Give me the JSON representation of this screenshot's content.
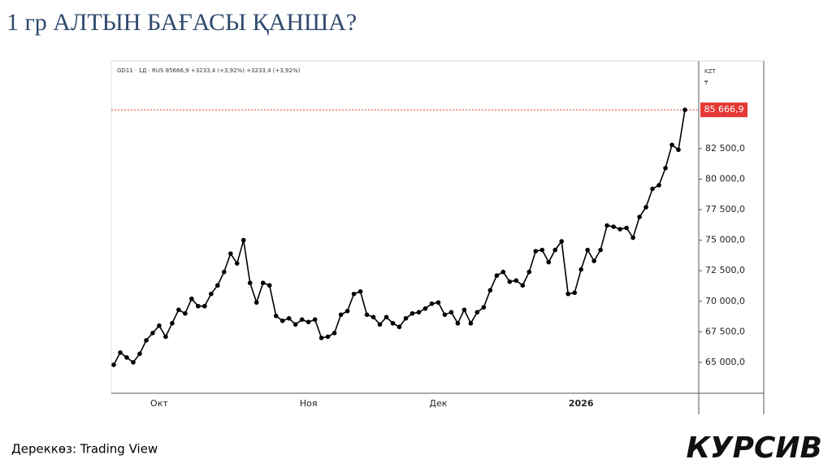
{
  "title": "1 гр АЛТЫН БАҒАСЫ ҚАНША?",
  "source": "Дереккөз: Trading View",
  "logo": "КУРСИВ",
  "chart_data": {
    "type": "line",
    "legend_text": "GD11 · 1Д · RUS  85666,9  +3233,4 (+3,92%)  +3233,4 (+3,92%)",
    "currency": "KZT",
    "currency_sign": "₸",
    "price_label": "85 666,9",
    "color": "#000000",
    "price_line_color": "#e53935",
    "categories": [
      null,
      null,
      null,
      null,
      null,
      null,
      null,
      "Окт",
      null,
      null,
      null,
      null,
      null,
      null,
      null,
      null,
      null,
      null,
      null,
      null,
      null,
      null,
      null,
      null,
      null,
      null,
      null,
      null,
      null,
      null,
      "Ноя",
      null,
      null,
      null,
      null,
      null,
      null,
      null,
      null,
      null,
      null,
      null,
      null,
      null,
      null,
      null,
      null,
      null,
      null,
      null,
      "Дек",
      null,
      null,
      null,
      null,
      null,
      null,
      null,
      null,
      null,
      null,
      null,
      null,
      null,
      null,
      null,
      null,
      null,
      null,
      null,
      null,
      null,
      "2026",
      null,
      null,
      null,
      null,
      null,
      null,
      null,
      null,
      null,
      null,
      null,
      null,
      null,
      null,
      null,
      null
    ],
    "values": [
      64800,
      65800,
      65400,
      65000,
      65700,
      66800,
      67400,
      68000,
      67100,
      68200,
      69300,
      69000,
      70200,
      69600,
      69600,
      70600,
      71300,
      72400,
      73900,
      73100,
      75000,
      71500,
      69900,
      71500,
      71300,
      68800,
      68400,
      68600,
      68100,
      68500,
      68300,
      68500,
      67000,
      67100,
      67400,
      68900,
      69200,
      70600,
      70800,
      68900,
      68700,
      68100,
      68700,
      68200,
      67900,
      68600,
      69000,
      69100,
      69400,
      69800,
      69900,
      68900,
      69100,
      68200,
      69300,
      68200,
      69100,
      69500,
      70900,
      72100,
      72400,
      71600,
      71700,
      71300,
      72400,
      74100,
      74200,
      73200,
      74200,
      74900,
      70600,
      70700,
      72600,
      74200,
      73300,
      74200,
      76200,
      76100,
      75900,
      76000,
      75200,
      76900,
      77700,
      79200,
      79500,
      80900,
      82800,
      82400,
      85666.9
    ],
    "ylim": [
      62470,
      89670
    ],
    "yticks": [
      {
        "value": 65000,
        "label": "65 000,0"
      },
      {
        "value": 67500,
        "label": "67 500,0"
      },
      {
        "value": 70000,
        "label": "70 000,0"
      },
      {
        "value": 72500,
        "label": "72 500,0"
      },
      {
        "value": 75000,
        "label": "75 000,0"
      },
      {
        "value": 77500,
        "label": "77 500,0"
      },
      {
        "value": 80000,
        "label": "80 000,0"
      },
      {
        "value": 82500,
        "label": "82 500,0"
      }
    ]
  }
}
